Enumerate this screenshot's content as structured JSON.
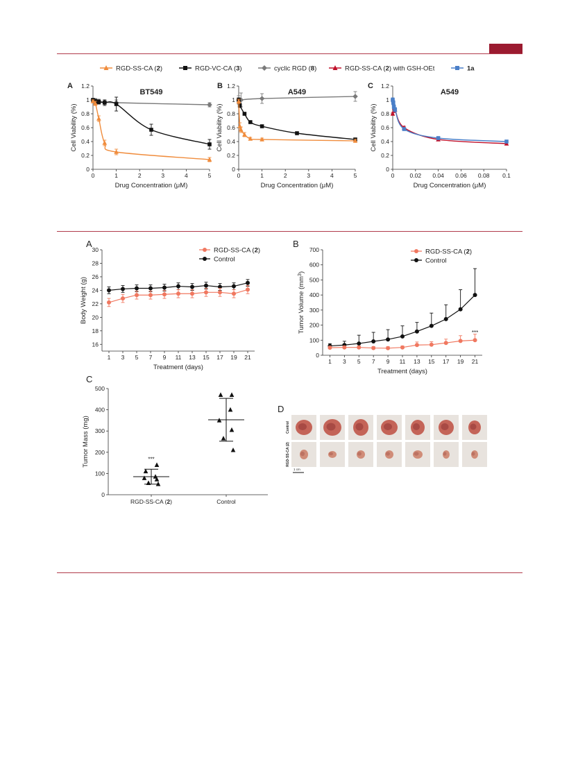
{
  "colors": {
    "accent": "#9b1b30",
    "orange": "#f08c3c",
    "black": "#111111",
    "gray": "#7a7a7a",
    "red": "#c0102a",
    "blue": "#4a7fc8",
    "salmon": "#f07860"
  },
  "figure1": {
    "legend": [
      {
        "label_pre": "RGD-SS-CA (",
        "label_bold": "2",
        "label_post": ")",
        "color": "#f08c3c",
        "marker": "triangle"
      },
      {
        "label_pre": "RGD-VC-CA (",
        "label_bold": "3",
        "label_post": ")",
        "color": "#111111",
        "marker": "square"
      },
      {
        "label_pre": "cyclic RGD (",
        "label_bold": "8",
        "label_post": ")",
        "color": "#7a7a7a",
        "marker": "diamond"
      },
      {
        "label_pre": "RGD-SS-CA (",
        "label_bold": "2",
        "label_post": ") with GSH-OEt",
        "color": "#c0102a",
        "marker": "triangle"
      },
      {
        "label_pre": "",
        "label_bold": "1a",
        "label_post": "",
        "color": "#4a7fc8",
        "marker": "square"
      }
    ]
  },
  "figure2": {
    "panelD": {
      "letter": "D",
      "row_labels": [
        "Control",
        "RGD-SS-CA (2)"
      ],
      "scale_label": "1 cm"
    }
  },
  "chart_data": [
    {
      "id": "1A",
      "type": "line",
      "panel_letter": "A",
      "title": "BT549",
      "xlabel": "Drug Concentration (μM)",
      "ylabel": "Cell Viability (%)",
      "xlim": [
        0,
        5
      ],
      "ylim": [
        0,
        1.2
      ],
      "xticks": [
        0,
        1,
        2,
        3,
        4,
        5
      ],
      "yticks": [
        0,
        0.2,
        0.4,
        0.6,
        0.8,
        1,
        1.2
      ],
      "series": [
        {
          "color": "#7a7a7a",
          "marker": "diamond",
          "x": [
            0,
            0.1,
            0.25,
            0.5,
            1,
            5
          ],
          "y": [
            1.0,
            0.99,
            0.98,
            0.97,
            0.96,
            0.93
          ],
          "err": [
            0.02,
            0.03,
            0.03,
            0.03,
            0.04,
            0.03
          ]
        },
        {
          "color": "#111111",
          "marker": "square",
          "x": [
            0,
            0.1,
            0.25,
            0.5,
            1,
            2.5,
            5
          ],
          "y": [
            1.0,
            0.98,
            0.97,
            0.96,
            0.94,
            0.57,
            0.36
          ],
          "err": [
            0.02,
            0.03,
            0.03,
            0.04,
            0.1,
            0.08,
            0.07
          ]
        },
        {
          "color": "#f08c3c",
          "marker": "triangle",
          "x": [
            0,
            0.1,
            0.25,
            0.5,
            1,
            5
          ],
          "y": [
            0.98,
            0.95,
            0.73,
            0.38,
            0.25,
            0.14
          ],
          "err": [
            0.02,
            0.03,
            0.04,
            0.04,
            0.04,
            0.03
          ]
        }
      ]
    },
    {
      "id": "1B",
      "type": "line",
      "panel_letter": "B",
      "title": "A549",
      "xlabel": "Drug Concentration (μM)",
      "ylabel": "Cell Viability (%)",
      "xlim": [
        0,
        5
      ],
      "ylim": [
        0,
        1.2
      ],
      "xticks": [
        0,
        1,
        2,
        3,
        4,
        5
      ],
      "yticks": [
        0,
        0.2,
        0.4,
        0.6,
        0.8,
        1,
        1.2
      ],
      "series": [
        {
          "color": "#7a7a7a",
          "marker": "diamond",
          "x": [
            0,
            0.1,
            1,
            5
          ],
          "y": [
            1.0,
            1.0,
            1.02,
            1.05
          ],
          "err": [
            0.06,
            0.1,
            0.07,
            0.07
          ]
        },
        {
          "color": "#111111",
          "marker": "square",
          "x": [
            0,
            0.05,
            0.25,
            0.5,
            1,
            2.5,
            5
          ],
          "y": [
            1.0,
            0.92,
            0.8,
            0.68,
            0.62,
            0.52,
            0.43
          ],
          "err": [
            0.03,
            0.03,
            0.02,
            0.02,
            0.02,
            0.02,
            0.02
          ]
        },
        {
          "color": "#f08c3c",
          "marker": "triangle",
          "x": [
            0,
            0.05,
            0.1,
            0.25,
            0.5,
            1,
            5
          ],
          "y": [
            0.98,
            0.62,
            0.57,
            0.5,
            0.44,
            0.43,
            0.41
          ],
          "err": [
            0.03,
            0.05,
            0.04,
            0.03,
            0.02,
            0.02,
            0.02
          ]
        }
      ]
    },
    {
      "id": "1C",
      "type": "line",
      "panel_letter": "C",
      "title": "A549",
      "xlabel": "Drug Concentration (μM)",
      "ylabel": "Cell Viability (%)",
      "xlim": [
        0,
        0.1
      ],
      "ylim": [
        0,
        1.2
      ],
      "xticks": [
        0,
        0.02,
        0.04,
        0.06,
        0.08,
        0.1
      ],
      "yticks": [
        0,
        0.2,
        0.4,
        0.6,
        0.8,
        1,
        1.2
      ],
      "series": [
        {
          "color": "#c0102a",
          "marker": "triangle",
          "x": [
            0,
            0.001,
            0.002,
            0.01,
            0.04,
            0.1
          ],
          "y": [
            0.8,
            0.84,
            0.86,
            0.6,
            0.43,
            0.37
          ],
          "err": [
            0.02,
            0.02,
            0.02,
            0.02,
            0.02,
            0.02
          ]
        },
        {
          "color": "#4a7fc8",
          "marker": "square",
          "x": [
            0,
            0.0005,
            0.001,
            0.002,
            0.01,
            0.04,
            0.1
          ],
          "y": [
            1.0,
            0.96,
            0.9,
            0.86,
            0.58,
            0.45,
            0.4
          ],
          "err": [
            0.03,
            0.03,
            0.03,
            0.03,
            0.02,
            0.02,
            0.02
          ]
        }
      ]
    },
    {
      "id": "2A",
      "type": "line",
      "panel_letter": "A",
      "xlabel": "Treatment (days)",
      "ylabel": "Body Weight (g)",
      "xlim": [
        0,
        22
      ],
      "ylim": [
        15,
        30
      ],
      "xticks": [
        1,
        3,
        5,
        7,
        9,
        11,
        13,
        15,
        17,
        19,
        21
      ],
      "yticks": [
        16,
        18,
        20,
        22,
        24,
        26,
        28,
        30
      ],
      "legend": [
        {
          "label_pre": "RGD-SS-CA (",
          "label_bold": "2",
          "label_post": ")",
          "color": "#f07860"
        },
        {
          "label_pre": "Control",
          "label_bold": "",
          "label_post": "",
          "color": "#111111"
        }
      ],
      "series": [
        {
          "color": "#111111",
          "x": [
            1,
            3,
            5,
            7,
            9,
            11,
            13,
            15,
            17,
            19,
            21
          ],
          "y": [
            24.0,
            24.2,
            24.3,
            24.3,
            24.4,
            24.6,
            24.5,
            24.7,
            24.5,
            24.6,
            25.1
          ],
          "err": [
            0.5,
            0.5,
            0.5,
            0.5,
            0.5,
            0.5,
            0.5,
            0.5,
            0.5,
            0.5,
            0.5
          ]
        },
        {
          "color": "#f07860",
          "x": [
            1,
            3,
            5,
            7,
            9,
            11,
            13,
            15,
            17,
            19,
            21
          ],
          "y": [
            22.2,
            22.8,
            23.3,
            23.3,
            23.4,
            23.5,
            23.5,
            23.7,
            23.7,
            23.5,
            24.1
          ],
          "err": [
            0.6,
            0.6,
            0.6,
            0.6,
            0.6,
            0.6,
            0.6,
            0.6,
            0.6,
            0.6,
            0.6
          ]
        }
      ]
    },
    {
      "id": "2B",
      "type": "line",
      "panel_letter": "B",
      "xlabel": "Treatment (days)",
      "ylabel_pre": "Tumor Volume (mm",
      "ylabel_sup": "3",
      "ylabel_post": ")",
      "xlim": [
        0,
        22
      ],
      "ylim": [
        0,
        700
      ],
      "xticks": [
        1,
        3,
        5,
        7,
        9,
        11,
        13,
        15,
        17,
        19,
        21
      ],
      "yticks": [
        0,
        100,
        200,
        300,
        400,
        500,
        600,
        700
      ],
      "annotation": "***",
      "legend": [
        {
          "label_pre": "RGD-SS-CA (",
          "label_bold": "2",
          "label_post": ")",
          "color": "#f07860"
        },
        {
          "label_pre": "Control",
          "label_bold": "",
          "label_post": "",
          "color": "#111111"
        }
      ],
      "series": [
        {
          "color": "#111111",
          "x": [
            1,
            3,
            5,
            7,
            9,
            11,
            13,
            15,
            17,
            19,
            21
          ],
          "y": [
            62,
            68,
            78,
            92,
            105,
            125,
            158,
            195,
            240,
            305,
            400
          ],
          "err": [
            15,
            25,
            55,
            60,
            65,
            70,
            60,
            85,
            95,
            130,
            175
          ]
        },
        {
          "color": "#f07860",
          "x": [
            1,
            3,
            5,
            7,
            9,
            11,
            13,
            15,
            17,
            19,
            21
          ],
          "y": [
            50,
            52,
            52,
            48,
            47,
            52,
            68,
            70,
            82,
            95,
            100
          ],
          "err": [
            10,
            10,
            10,
            10,
            10,
            10,
            20,
            20,
            25,
            35,
            40
          ]
        }
      ]
    },
    {
      "id": "2C",
      "type": "scatter",
      "panel_letter": "C",
      "ylabel": "Tumor Mass (mg)",
      "ylim": [
        0,
        500
      ],
      "yticks": [
        0,
        100,
        200,
        300,
        400,
        500
      ],
      "categories": [
        {
          "label_pre": "RGD-SS-CA (",
          "label_bold": "2",
          "label_post": ")"
        },
        {
          "label_pre": "Control",
          "label_bold": "",
          "label_post": ""
        }
      ],
      "annotation": "***",
      "groups": [
        {
          "points": [
            140,
            110,
            85,
            78,
            72,
            55,
            50
          ],
          "mean": 85,
          "sd_low": 50,
          "sd_high": 120
        },
        {
          "points": [
            470,
            470,
            400,
            350,
            305,
            265,
            210
          ],
          "mean": 353,
          "sd_low": 252,
          "sd_high": 454
        }
      ]
    }
  ]
}
